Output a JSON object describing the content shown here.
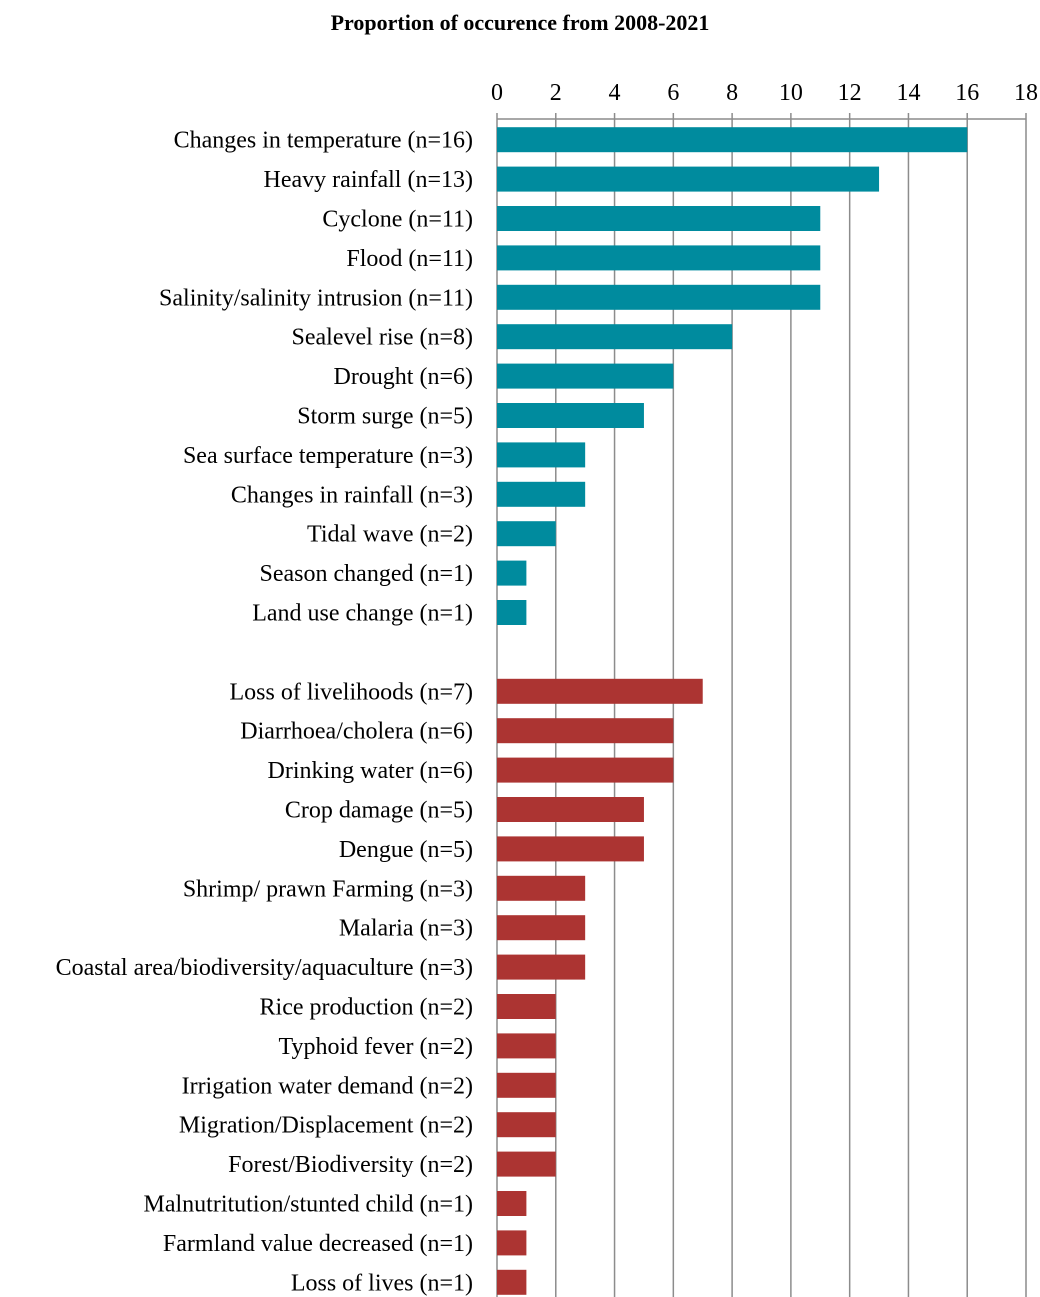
{
  "chart_data": {
    "type": "bar",
    "orientation": "horizontal",
    "title": "Proportion of occurence from 2008-2021",
    "xlabel": "",
    "ylabel": "",
    "xlim": [
      0,
      18
    ],
    "xticks": [
      0,
      2,
      4,
      6,
      8,
      10,
      12,
      14,
      16,
      18
    ],
    "xaxis_position": "top",
    "grid": true,
    "legend": "none",
    "colors": {
      "group1": "#008B9E",
      "group2": "#AC3432"
    },
    "groups": [
      {
        "color_key": "group1",
        "categories": [
          "Changes in temperature (n=16)",
          "Heavy rainfall (n=13)",
          "Cyclone (n=11)",
          "Flood (n=11)",
          "Salinity/salinity intrusion (n=11)",
          "Sealevel rise (n=8)",
          "Drought (n=6)",
          "Storm surge (n=5)",
          "Sea surface temperature (n=3)",
          "Changes in rainfall (n=3)",
          "Tidal wave (n=2)",
          "Season changed (n=1)",
          "Land use change (n=1)"
        ],
        "values": [
          16,
          13,
          11,
          11,
          11,
          8,
          6,
          5,
          3,
          3,
          2,
          1,
          1
        ]
      },
      {
        "color_key": "group2",
        "categories": [
          "Loss of livelihoods (n=7)",
          "Diarrhoea/cholera (n=6)",
          "Drinking water (n=6)",
          "Crop damage (n=5)",
          "Dengue (n=5)",
          "Shrimp/ prawn Farming (n=3)",
          "Malaria (n=3)",
          "Coastal area/biodiversity/aquaculture (n=3)",
          "Rice production (n=2)",
          "Typhoid fever (n=2)",
          "Irrigation water demand (n=2)",
          "Migration/Displacement  (n=2)",
          "Forest/Biodiversity (n=2)",
          "Malnutritution/stunted child (n=1)",
          "Farmland value decreased (n=1)",
          "Loss of lives (n=1)"
        ],
        "values": [
          7,
          6,
          6,
          5,
          5,
          3,
          3,
          3,
          2,
          2,
          2,
          2,
          2,
          1,
          1,
          1
        ]
      }
    ]
  }
}
